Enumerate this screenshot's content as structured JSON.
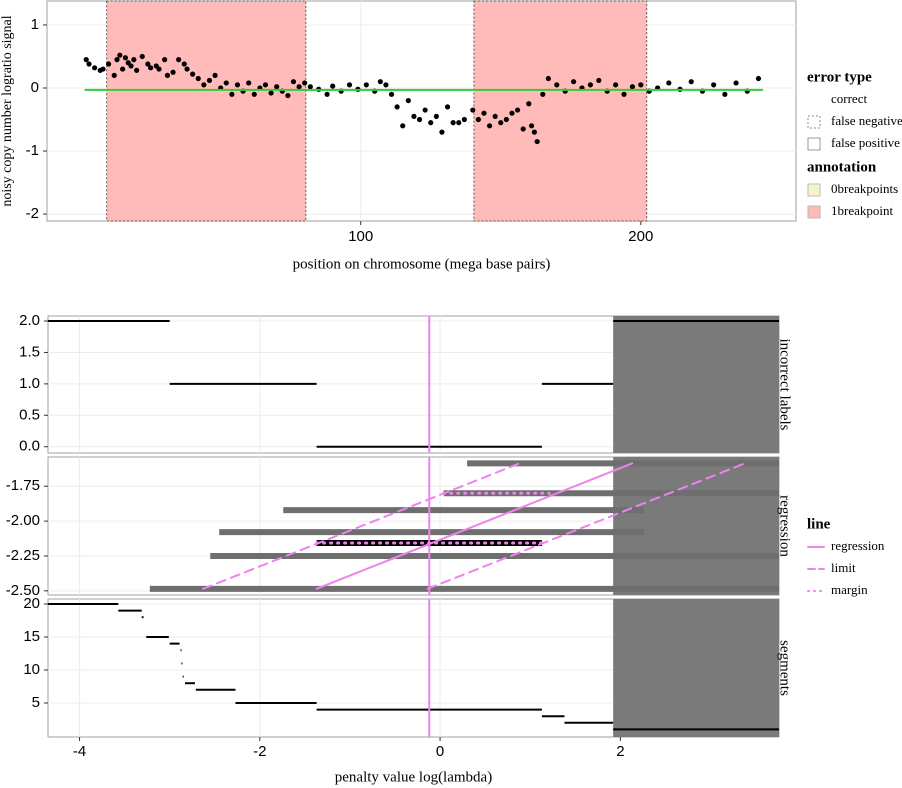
{
  "chart_data": [
    {
      "type": "scatter",
      "x_label": "position on chromosome (mega base pairs)",
      "y_label": "noisy copy number logratio signal",
      "xlim": [
        -12,
        255.4
      ],
      "ylim": [
        -2.11,
        1.38
      ],
      "xticks": [
        100,
        200
      ],
      "yticks": [
        -2,
        -1,
        0,
        1
      ],
      "grid": true,
      "color": "#000000",
      "x": [
        2,
        3,
        5,
        7,
        8,
        10,
        12,
        13,
        14,
        15,
        16,
        17,
        18,
        19,
        20,
        22,
        24,
        25,
        27,
        28,
        30,
        31,
        33,
        35,
        37,
        38,
        40,
        42,
        44,
        46,
        48,
        50,
        52,
        54,
        56,
        58,
        60,
        62,
        64,
        66,
        68,
        70,
        72,
        74,
        76,
        78,
        80,
        82,
        85,
        88,
        90,
        93,
        96,
        99,
        102,
        105,
        107,
        109,
        111,
        113,
        115,
        117,
        119,
        121,
        123,
        125,
        127,
        129,
        131,
        133,
        135,
        137,
        140,
        142,
        144,
        146,
        148,
        150,
        152,
        154,
        156,
        158,
        160,
        161,
        162,
        163,
        165,
        167,
        170,
        173,
        176,
        179,
        182,
        185,
        188,
        191,
        194,
        197,
        200,
        203,
        206,
        210,
        214,
        218,
        222,
        226,
        230,
        234,
        238,
        242
      ],
      "values": [
        0.45,
        0.38,
        0.32,
        0.28,
        0.3,
        0.38,
        0.2,
        0.45,
        0.52,
        0.3,
        0.48,
        0.4,
        0.35,
        0.45,
        0.28,
        0.5,
        0.38,
        0.32,
        0.35,
        0.3,
        0.45,
        0.2,
        0.25,
        0.45,
        0.38,
        0.3,
        0.22,
        0.15,
        0.05,
        0.12,
        0.2,
        0.0,
        0.08,
        -0.1,
        0.05,
        -0.05,
        0.08,
        -0.1,
        0.0,
        0.05,
        -0.08,
        0.02,
        -0.05,
        -0.12,
        0.1,
        0.02,
        0.08,
        0.02,
        -0.02,
        -0.1,
        0.03,
        -0.05,
        0.05,
        -0.02,
        0.05,
        -0.05,
        0.1,
        0.05,
        -0.1,
        -0.3,
        -0.6,
        -0.2,
        -0.45,
        -0.5,
        -0.35,
        -0.55,
        -0.45,
        -0.7,
        -0.3,
        -0.55,
        -0.55,
        -0.5,
        -0.35,
        -0.5,
        -0.4,
        -0.6,
        -0.45,
        -0.55,
        -0.5,
        -0.4,
        -0.35,
        -0.65,
        -0.25,
        -0.6,
        -0.7,
        -0.85,
        -0.1,
        0.15,
        0.05,
        -0.05,
        0.1,
        0.0,
        0.05,
        0.12,
        -0.05,
        0.05,
        -0.1,
        0.02,
        0.05,
        -0.05,
        0.0,
        0.08,
        -0.02,
        0.1,
        -0.05,
        0.05,
        -0.1,
        0.08,
        -0.05,
        0.15
      ],
      "fit": {
        "x": [
          1.4,
          243.6
        ],
        "values": [
          -0.03,
          -0.03
        ],
        "color": "#33cc33"
      },
      "regions": [
        {
          "xmin": 9.3,
          "xmax": 80.4,
          "annotation": "1breakpoint",
          "error": "false negative"
        },
        {
          "xmin": 140.4,
          "xmax": 202.1,
          "annotation": "1breakpoint",
          "error": "false negative"
        }
      ],
      "legends": [
        {
          "title": "error type",
          "items": [
            {
              "label": "correct",
              "border": "none"
            },
            {
              "label": "false negative",
              "border": "dashed"
            },
            {
              "label": "false positive",
              "border": "solid"
            }
          ]
        },
        {
          "title": "annotation",
          "items": [
            {
              "label": "0breakpoints",
              "color": "#f6f3c8"
            },
            {
              "label": "1breakpoint",
              "color": "#ffbaba"
            }
          ]
        }
      ]
    },
    {
      "type": "facets",
      "x_label": "penalty value log(lambda)",
      "xlim": [
        -4.35,
        3.76
      ],
      "xticks": [
        -4,
        -2,
        0,
        2
      ],
      "grid": true,
      "selected": -0.12,
      "selected_color": "#ee82ee",
      "shade_from": 1.92,
      "shade_color": "#7a7a7a",
      "legend_title": "line",
      "panels": [
        {
          "strip": "incorrect labels",
          "ylim": [
            -0.1,
            2.08
          ],
          "yticks": [
            {
              "value": 0,
              "label": "0.0"
            },
            {
              "value": 0.5,
              "label": "0.5"
            },
            {
              "value": 1,
              "label": "1.0"
            },
            {
              "value": 1.5,
              "label": "1.5"
            },
            {
              "value": 2,
              "label": "2.0"
            }
          ],
          "steps": [
            {
              "x0": -4.35,
              "x1": -3.0,
              "y": 2
            },
            {
              "x0": -3.0,
              "x1": -1.37,
              "y": 1
            },
            {
              "x0": -1.37,
              "x1": 1.13,
              "y": 0
            },
            {
              "x0": 1.13,
              "x1": 1.92,
              "y": 1
            },
            {
              "x0": 1.92,
              "x1": 3.76,
              "y": 2
            }
          ]
        },
        {
          "strip": "regression",
          "ylim": [
            -2.53,
            -1.54
          ],
          "yticks": [
            {
              "value": -2.5,
              "label": "-2.50"
            },
            -2.25,
            {
              "value": -2,
              "label": "-2.00"
            },
            -1.75
          ],
          "intervals": [
            {
              "x0": 0.3,
              "x1": 3.76,
              "y": -1.586,
              "color": "#6e6e6e"
            },
            {
              "x0": 0.04,
              "x1": 3.76,
              "y": -1.8,
              "color": "#6e6e6e"
            },
            {
              "x0": -1.74,
              "x1": 2.26,
              "y": -1.921,
              "color": "#6e6e6e"
            },
            {
              "x0": -2.45,
              "x1": 2.26,
              "y": -2.079,
              "color": "#6e6e6e"
            },
            {
              "x0": -1.37,
              "x1": 1.13,
              "y": -2.157,
              "color": "#000000"
            },
            {
              "x0": -2.55,
              "x1": 3.76,
              "y": -2.25,
              "color": "#6e6e6e"
            },
            {
              "x0": -3.22,
              "x1": 3.76,
              "y": -2.486,
              "color": "#6e6e6e"
            }
          ],
          "lines": [
            {
              "name": "regression",
              "dash": "none",
              "x": [
                -1.37,
                2.13
              ],
              "values": [
                -2.486,
                -1.586
              ]
            },
            {
              "name": "limit",
              "dash": "9,6",
              "x": [
                -2.63,
                0.88,
                null,
                -0.14,
                3.38
              ],
              "values": [
                -2.486,
                -1.586,
                null,
                -2.486,
                -1.586
              ]
            },
            {
              "name": "margin",
              "dash": "1,6",
              "x": [
                0.04,
                1.21,
                null,
                -1.37,
                1.13
              ],
              "values": [
                -1.8,
                -1.8,
                null,
                -2.157,
                -2.157
              ]
            }
          ]
        },
        {
          "strip": "segments",
          "ylim": [
            -0.15,
            20.76
          ],
          "yticks": [
            5,
            10,
            15,
            20
          ],
          "steps": [
            {
              "x0": -4.35,
              "x1": -3.57,
              "y": 20
            },
            {
              "x0": -3.57,
              "x1": -3.31,
              "y": 19
            },
            {
              "x0": -3.31,
              "x1": -3.29,
              "y": 18
            },
            {
              "x0": -3.26,
              "x1": -3.01,
              "y": 15
            },
            {
              "x0": -3.0,
              "x1": -2.89,
              "y": 14
            },
            {
              "x0": -2.88,
              "x1": -2.875,
              "y": 13
            },
            {
              "x0": -2.87,
              "x1": -2.865,
              "y": 11
            },
            {
              "x0": -2.855,
              "x1": -2.85,
              "y": 9
            },
            {
              "x0": -2.83,
              "x1": -2.72,
              "y": 8
            },
            {
              "x0": -2.71,
              "x1": -2.27,
              "y": 7
            },
            {
              "x0": -2.27,
              "x1": -1.37,
              "y": 5
            },
            {
              "x0": -1.37,
              "x1": 1.13,
              "y": 4
            },
            {
              "x0": 1.13,
              "x1": 1.38,
              "y": 3
            },
            {
              "x0": 1.38,
              "x1": 1.92,
              "y": 2
            },
            {
              "x0": 1.92,
              "x1": 3.76,
              "y": 1
            }
          ]
        }
      ]
    }
  ]
}
